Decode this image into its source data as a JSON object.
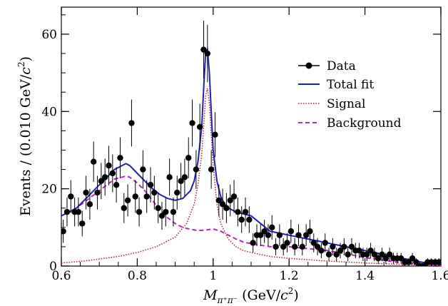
{
  "chart_data": {
    "type": "scatter",
    "xlim": [
      0.6,
      1.6
    ],
    "ylim": [
      0,
      67
    ],
    "x_ticks": [
      "0.6",
      "0.8",
      "1",
      "1.2",
      "1.4",
      "1.6"
    ],
    "y_ticks": [
      "0",
      "20",
      "40",
      "60"
    ],
    "x_tick_values": [
      0.6,
      0.8,
      1.0,
      1.2,
      1.4,
      1.6
    ],
    "y_tick_values": [
      0,
      20,
      40,
      60
    ],
    "xlabel": {
      "main": "M",
      "sub": "π⁺π⁻",
      "unit_open": " (GeV/",
      "unit_var": "c",
      "unit_sup": "2",
      "unit_close": ")"
    },
    "ylabel": {
      "main": "Events / (0.010 GeV/",
      "unit_var": "c",
      "unit_sup": "2",
      "unit_close": ")"
    },
    "legend_position": "top-right",
    "grid": false,
    "legend": [
      {
        "name": "Data",
        "style": "marker",
        "color": "#000000"
      },
      {
        "name": "Total fit",
        "style": "solid",
        "color": "#1f1fcc"
      },
      {
        "name": "Signal",
        "style": "dotted",
        "color": "#b22222"
      },
      {
        "name": "Background",
        "style": "dashed",
        "color": "#c020c0"
      }
    ],
    "series": [
      {
        "name": "Data",
        "type": "errorbar",
        "x": [
          0.605,
          0.615,
          0.625,
          0.635,
          0.645,
          0.655,
          0.665,
          0.675,
          0.685,
          0.695,
          0.705,
          0.715,
          0.725,
          0.735,
          0.745,
          0.755,
          0.765,
          0.775,
          0.785,
          0.795,
          0.805,
          0.815,
          0.825,
          0.835,
          0.845,
          0.855,
          0.865,
          0.875,
          0.885,
          0.895,
          0.905,
          0.915,
          0.925,
          0.935,
          0.945,
          0.955,
          0.965,
          0.975,
          0.985,
          0.995,
          1.005,
          1.015,
          1.025,
          1.035,
          1.045,
          1.055,
          1.065,
          1.075,
          1.085,
          1.095,
          1.105,
          1.115,
          1.125,
          1.135,
          1.145,
          1.155,
          1.165,
          1.175,
          1.185,
          1.195,
          1.205,
          1.215,
          1.225,
          1.235,
          1.245,
          1.255,
          1.265,
          1.275,
          1.285,
          1.295,
          1.305,
          1.315,
          1.325,
          1.335,
          1.345,
          1.355,
          1.365,
          1.375,
          1.385,
          1.395,
          1.405,
          1.415,
          1.425,
          1.435,
          1.445,
          1.455,
          1.465,
          1.475,
          1.485,
          1.495,
          1.505,
          1.515,
          1.525,
          1.535,
          1.545,
          1.555,
          1.565,
          1.575,
          1.585,
          1.595
        ],
        "y": [
          9,
          14,
          18,
          14,
          14,
          11,
          19,
          16,
          27,
          19,
          22,
          23,
          26,
          24,
          21,
          28,
          15,
          17,
          37,
          18,
          14,
          25,
          18,
          21,
          19,
          15,
          13,
          14,
          23,
          14,
          19,
          22,
          23,
          28,
          37,
          25,
          36,
          56,
          55,
          25,
          34,
          17,
          16,
          15,
          17,
          18,
          14,
          12,
          14,
          12,
          6,
          8,
          8,
          9,
          8,
          10,
          5,
          8,
          5,
          6,
          9,
          5,
          8,
          5,
          8,
          9,
          6,
          5,
          4,
          6,
          3,
          5,
          3,
          4,
          5,
          3,
          5,
          4,
          4,
          3,
          3,
          4,
          3,
          2,
          3,
          2,
          3,
          2,
          2,
          2,
          1,
          1,
          2,
          1,
          0,
          0,
          1,
          1,
          1,
          1
        ]
      },
      {
        "name": "Total fit",
        "type": "line",
        "x": [
          0.6,
          0.62,
          0.64,
          0.66,
          0.68,
          0.7,
          0.72,
          0.74,
          0.76,
          0.77,
          0.78,
          0.8,
          0.82,
          0.84,
          0.86,
          0.88,
          0.9,
          0.92,
          0.94,
          0.95,
          0.96,
          0.97,
          0.975,
          0.98,
          0.985,
          0.99,
          0.995,
          1.0,
          1.01,
          1.02,
          1.03,
          1.04,
          1.06,
          1.08,
          1.1,
          1.15,
          1.2,
          1.25,
          1.3,
          1.35,
          1.4,
          1.45,
          1.5,
          1.55,
          1.6
        ],
        "y": [
          13,
          14,
          15,
          17,
          19,
          21,
          23,
          25,
          26,
          26.5,
          26,
          24,
          22,
          20,
          18.5,
          17.5,
          17,
          17.5,
          19.5,
          22,
          27,
          36,
          46,
          55,
          56,
          50,
          40,
          30,
          22,
          18,
          16,
          15,
          14,
          13.5,
          13,
          9,
          8,
          7,
          6,
          5,
          4,
          3,
          2,
          1,
          0.5
        ]
      },
      {
        "name": "Signal",
        "type": "line",
        "x": [
          0.6,
          0.65,
          0.7,
          0.75,
          0.8,
          0.85,
          0.9,
          0.93,
          0.95,
          0.96,
          0.97,
          0.975,
          0.98,
          0.985,
          0.99,
          0.995,
          1.0,
          1.01,
          1.02,
          1.04,
          1.06,
          1.08,
          1.1,
          1.15,
          1.2,
          1.3,
          1.4,
          1.5,
          1.6
        ],
        "y": [
          0.8,
          1.2,
          1.8,
          2.5,
          3.5,
          5,
          7.5,
          11,
          16,
          21,
          29,
          36,
          44,
          46,
          42,
          34,
          26,
          16,
          11,
          7,
          5,
          4,
          3.5,
          2.5,
          2,
          1.3,
          0.8,
          0.4,
          0.2
        ]
      },
      {
        "name": "Background",
        "type": "line",
        "x": [
          0.6,
          0.62,
          0.64,
          0.66,
          0.68,
          0.7,
          0.72,
          0.74,
          0.76,
          0.77,
          0.78,
          0.8,
          0.82,
          0.84,
          0.86,
          0.88,
          0.9,
          0.92,
          0.94,
          0.96,
          0.98,
          1.0,
          1.02,
          1.04,
          1.06,
          1.08,
          1.1,
          1.15,
          1.2,
          1.25,
          1.3,
          1.35,
          1.4,
          1.45,
          1.5,
          1.55,
          1.6
        ],
        "y": [
          13,
          14,
          15,
          16.5,
          18,
          19.5,
          21,
          22.5,
          23,
          23.3,
          23,
          21.5,
          19.5,
          17,
          14.5,
          12.5,
          11,
          10,
          9.5,
          9.2,
          9.3,
          9.6,
          9,
          8,
          7,
          6.2,
          5.8,
          5,
          5,
          4.5,
          4,
          3.2,
          2.2,
          1.5,
          0.8,
          0.3,
          0.1
        ]
      }
    ]
  }
}
